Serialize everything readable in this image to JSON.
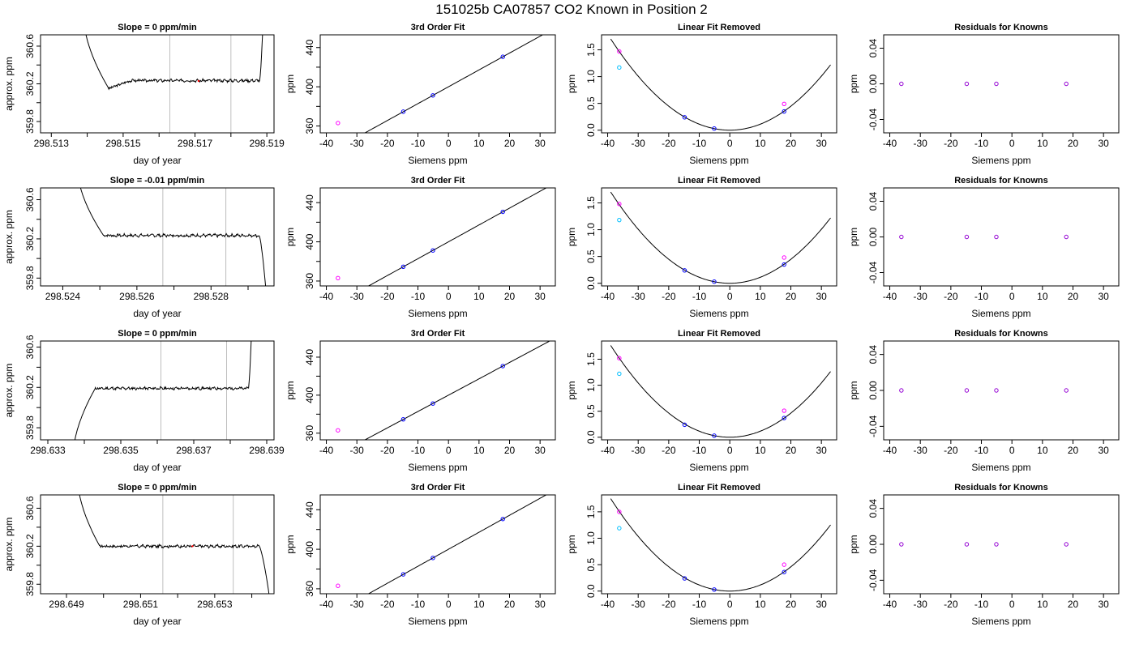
{
  "figure": {
    "title": "151025b     CA07857   CO2 Known in Position  2"
  },
  "colors": {
    "trace": "#000000",
    "vline": "#bebebe",
    "fit_line": "#000000",
    "pt_a": "#0000ff",
    "pt_b": "#ff00ff",
    "pt_c": "#00bfff",
    "pt_d": "#9400d3",
    "pt_red": "#ff0000"
  },
  "chart_data": [
    {
      "type": "line",
      "row": 0,
      "col": 0,
      "title": "Slope =  0  ppm/min",
      "xlabel": "day of year",
      "ylabel": "approx. ppm",
      "xlim": [
        298.5127,
        298.5192
      ],
      "ylim": [
        359.68,
        360.72
      ],
      "xticks": [
        298.513,
        298.514,
        298.515,
        298.516,
        298.517,
        298.518,
        298.519
      ],
      "xtick_labels": [
        "298.513",
        "",
        "298.515",
        "",
        "298.517",
        "",
        "298.519"
      ],
      "yticks": [
        359.8,
        360.0,
        360.2,
        360.4,
        360.6
      ],
      "ytick_labels": [
        "359.8",
        "",
        "360.2",
        "",
        "360.6"
      ],
      "vlines": [
        298.5163,
        298.518
      ],
      "trace": {
        "start": 298.5139,
        "end": 298.5189,
        "edge_lo": 298.5146,
        "edge_hi": 298.5188,
        "left_from": 360.9,
        "right_to": 360.9,
        "level": 360.235,
        "flat_start": 298.5152,
        "dip": 360.15,
        "noise": 0.012,
        "seed": 3
      },
      "markers": [
        {
          "x": 298.5171,
          "y": 360.23
        }
      ]
    },
    {
      "type": "scatter",
      "row": 0,
      "col": 1,
      "title": "3rd Order Fit",
      "xlabel": "Siemens ppm",
      "ylabel": "ppm",
      "xlim": [
        -42,
        35
      ],
      "ylim": [
        353,
        453
      ],
      "xticks": [
        -40,
        -30,
        -20,
        -10,
        0,
        10,
        20,
        30
      ],
      "yticks": [
        360,
        380,
        400,
        420,
        440
      ],
      "ytick_labels": [
        "360",
        "",
        "400",
        "",
        "440"
      ],
      "fit": {
        "a": 400,
        "b": 1.72,
        "c": 0,
        "from": -38.5,
        "to": 33
      },
      "points": [
        {
          "x": -36.2,
          "y": 363.0,
          "c": "pt_b"
        },
        {
          "x": -14.8,
          "y": 374.6,
          "c": "pt_a"
        },
        {
          "x": -5.1,
          "y": 391.2,
          "c": "pt_a"
        },
        {
          "x": 17.8,
          "y": 430.6,
          "c": "pt_a"
        }
      ]
    },
    {
      "type": "scatter",
      "row": 0,
      "col": 2,
      "title": "Linear Fit Removed",
      "xlabel": "Siemens ppm",
      "ylabel": "ppm",
      "xlim": [
        -42,
        35
      ],
      "ylim": [
        -0.05,
        1.78
      ],
      "xticks": [
        -40,
        -30,
        -20,
        -10,
        0,
        10,
        20,
        30
      ],
      "yticks": [
        0.0,
        0.5,
        1.0,
        1.5
      ],
      "ytick_labels": [
        "0.0",
        "0.5",
        "1.0",
        "1.5"
      ],
      "fit": {
        "a": 0,
        "b": 0,
        "c": 0.00112,
        "from": -39,
        "to": 33
      },
      "points": [
        {
          "x": -36.2,
          "y": 1.47,
          "c": "pt_b"
        },
        {
          "x": -36.2,
          "y": 1.17,
          "c": "pt_c"
        },
        {
          "x": -14.8,
          "y": 0.24,
          "c": "pt_a"
        },
        {
          "x": -5.1,
          "y": 0.03,
          "c": "pt_a"
        },
        {
          "x": 17.8,
          "y": 0.35,
          "c": "pt_a"
        },
        {
          "x": 17.8,
          "y": 0.49,
          "c": "pt_b"
        }
      ]
    },
    {
      "type": "scatter",
      "row": 0,
      "col": 3,
      "title": "Residuals for Knowns",
      "xlabel": "Siemens ppm",
      "ylabel": "ppm",
      "xlim": [
        -42,
        35
      ],
      "ylim": [
        -0.055,
        0.055
      ],
      "xticks": [
        -40,
        -30,
        -20,
        -10,
        0,
        10,
        20,
        30
      ],
      "yticks": [
        -0.04,
        0.0,
        0.04
      ],
      "ytick_labels": [
        "-0.04",
        "0.00",
        "0.04"
      ],
      "points": [
        {
          "x": -36.2,
          "y": 0,
          "c": "pt_d"
        },
        {
          "x": -14.8,
          "y": 0,
          "c": "pt_d"
        },
        {
          "x": -5.1,
          "y": 0,
          "c": "pt_d"
        },
        {
          "x": 17.8,
          "y": 0,
          "c": "pt_d"
        }
      ]
    },
    {
      "type": "line",
      "row": 1,
      "col": 0,
      "title": "Slope =  -0.01  ppm/min",
      "xlabel": "day of year",
      "ylabel": "approx. ppm",
      "xlim": [
        298.5234,
        298.5297
      ],
      "ylim": [
        359.72,
        360.72
      ],
      "xticks": [
        298.524,
        298.525,
        298.526,
        298.527,
        298.528,
        298.529
      ],
      "xtick_labels": [
        "298.524",
        "",
        "298.526",
        "",
        "298.528",
        ""
      ],
      "yticks": [
        359.8,
        360.0,
        360.2,
        360.4,
        360.6
      ],
      "ytick_labels": [
        "359.8",
        "",
        "360.2",
        "",
        "360.6"
      ],
      "vlines": [
        298.5267,
        298.5284
      ],
      "trace": {
        "start": 298.5244,
        "end": 298.5295,
        "edge_lo": 298.5251,
        "edge_hi": 298.5293,
        "left_from": 360.9,
        "right_to": 359.6,
        "level": 360.235,
        "flat_start": 298.5254,
        "dip": 360.235,
        "noise": 0.012,
        "seed": 7
      },
      "markers": []
    },
    {
      "type": "scatter",
      "row": 1,
      "col": 1,
      "title": "3rd Order Fit",
      "xlabel": "Siemens ppm",
      "ylabel": "ppm",
      "xlim": [
        -42,
        35
      ],
      "ylim": [
        355,
        455
      ],
      "xticks": [
        -40,
        -30,
        -20,
        -10,
        0,
        10,
        20,
        30
      ],
      "yticks": [
        360,
        380,
        400,
        420,
        440
      ],
      "ytick_labels": [
        "360",
        "",
        "400",
        "",
        "440"
      ],
      "fit": {
        "a": 400,
        "b": 1.72,
        "c": 0,
        "from": -38.5,
        "to": 33
      },
      "points": [
        {
          "x": -36.2,
          "y": 363.0,
          "c": "pt_b"
        },
        {
          "x": -14.8,
          "y": 374.6,
          "c": "pt_a"
        },
        {
          "x": -5.1,
          "y": 391.2,
          "c": "pt_a"
        },
        {
          "x": 17.8,
          "y": 430.6,
          "c": "pt_a"
        }
      ]
    },
    {
      "type": "scatter",
      "row": 1,
      "col": 2,
      "title": "Linear Fit Removed",
      "xlabel": "Siemens ppm",
      "ylabel": "ppm",
      "xlim": [
        -42,
        35
      ],
      "ylim": [
        -0.05,
        1.78
      ],
      "xticks": [
        -40,
        -30,
        -20,
        -10,
        0,
        10,
        20,
        30
      ],
      "yticks": [
        0.0,
        0.5,
        1.0,
        1.5
      ],
      "ytick_labels": [
        "0.0",
        "0.5",
        "1.0",
        "1.5"
      ],
      "fit": {
        "a": 0,
        "b": 0,
        "c": 0.00112,
        "from": -39,
        "to": 33
      },
      "points": [
        {
          "x": -36.2,
          "y": 1.48,
          "c": "pt_b"
        },
        {
          "x": -36.2,
          "y": 1.18,
          "c": "pt_c"
        },
        {
          "x": -14.8,
          "y": 0.24,
          "c": "pt_a"
        },
        {
          "x": -5.1,
          "y": 0.03,
          "c": "pt_a"
        },
        {
          "x": 17.8,
          "y": 0.35,
          "c": "pt_a"
        },
        {
          "x": 17.8,
          "y": 0.48,
          "c": "pt_b"
        }
      ]
    },
    {
      "type": "scatter",
      "row": 1,
      "col": 3,
      "title": "Residuals for Knowns",
      "xlabel": "Siemens ppm",
      "ylabel": "ppm",
      "xlim": [
        -42,
        35
      ],
      "ylim": [
        -0.055,
        0.055
      ],
      "xticks": [
        -40,
        -30,
        -20,
        -10,
        0,
        10,
        20,
        30
      ],
      "yticks": [
        -0.04,
        0.0,
        0.04
      ],
      "ytick_labels": [
        "-0.04",
        "0.00",
        "0.04"
      ],
      "points": [
        {
          "x": -36.2,
          "y": 0,
          "c": "pt_d"
        },
        {
          "x": -14.8,
          "y": 0,
          "c": "pt_d"
        },
        {
          "x": -5.1,
          "y": 0,
          "c": "pt_d"
        },
        {
          "x": 17.8,
          "y": 0,
          "c": "pt_d"
        }
      ]
    },
    {
      "type": "line",
      "row": 2,
      "col": 0,
      "title": "Slope =  0  ppm/min",
      "xlabel": "day of year",
      "ylabel": "approx. ppm",
      "xlim": [
        298.6328,
        298.6392
      ],
      "ylim": [
        359.68,
        360.66
      ],
      "xticks": [
        298.633,
        298.634,
        298.635,
        298.636,
        298.637,
        298.638,
        298.639
      ],
      "xtick_labels": [
        "298.633",
        "",
        "298.635",
        "",
        "298.637",
        "",
        "298.639"
      ],
      "yticks": [
        359.8,
        360.0,
        360.2,
        360.4,
        360.6
      ],
      "ytick_labels": [
        "359.8",
        "",
        "360.2",
        "",
        "360.6"
      ],
      "vlines": [
        298.6361,
        298.6379
      ],
      "trace": {
        "start": 298.6337,
        "end": 298.6386,
        "edge_lo": 298.6343,
        "edge_hi": 298.6385,
        "left_from": 359.55,
        "right_to": 360.9,
        "level": 360.19,
        "flat_start": 298.6345,
        "dip": 360.19,
        "noise": 0.011,
        "seed": 11
      },
      "markers": []
    },
    {
      "type": "scatter",
      "row": 2,
      "col": 1,
      "title": "3rd Order Fit",
      "xlabel": "Siemens ppm",
      "ylabel": "ppm",
      "xlim": [
        -42,
        35
      ],
      "ylim": [
        353,
        457
      ],
      "xticks": [
        -40,
        -30,
        -20,
        -10,
        0,
        10,
        20,
        30
      ],
      "yticks": [
        360,
        380,
        400,
        420,
        440
      ],
      "ytick_labels": [
        "360",
        "",
        "400",
        "",
        "440"
      ],
      "fit": {
        "a": 400,
        "b": 1.72,
        "c": 0,
        "from": -38.5,
        "to": 33
      },
      "points": [
        {
          "x": -36.2,
          "y": 363.0,
          "c": "pt_b"
        },
        {
          "x": -14.8,
          "y": 374.6,
          "c": "pt_a"
        },
        {
          "x": -5.1,
          "y": 391.2,
          "c": "pt_a"
        },
        {
          "x": 17.8,
          "y": 430.6,
          "c": "pt_a"
        }
      ]
    },
    {
      "type": "scatter",
      "row": 2,
      "col": 2,
      "title": "Linear Fit Removed",
      "xlabel": "Siemens ppm",
      "ylabel": "ppm",
      "xlim": [
        -42,
        35
      ],
      "ylim": [
        -0.05,
        1.85
      ],
      "xticks": [
        -40,
        -30,
        -20,
        -10,
        0,
        10,
        20,
        30
      ],
      "yticks": [
        0.0,
        0.5,
        1.0,
        1.5
      ],
      "ytick_labels": [
        "0.0",
        "0.5",
        "1.0",
        "1.5"
      ],
      "fit": {
        "a": 0,
        "b": 0,
        "c": 0.00116,
        "from": -39,
        "to": 33
      },
      "points": [
        {
          "x": -36.2,
          "y": 1.52,
          "c": "pt_b"
        },
        {
          "x": -36.2,
          "y": 1.22,
          "c": "pt_c"
        },
        {
          "x": -14.8,
          "y": 0.24,
          "c": "pt_a"
        },
        {
          "x": -5.1,
          "y": 0.03,
          "c": "pt_a"
        },
        {
          "x": 17.8,
          "y": 0.37,
          "c": "pt_a"
        },
        {
          "x": 17.8,
          "y": 0.51,
          "c": "pt_b"
        }
      ]
    },
    {
      "type": "scatter",
      "row": 2,
      "col": 3,
      "title": "Residuals for Knowns",
      "xlabel": "Siemens ppm",
      "ylabel": "ppm",
      "xlim": [
        -42,
        35
      ],
      "ylim": [
        -0.055,
        0.055
      ],
      "xticks": [
        -40,
        -30,
        -20,
        -10,
        0,
        10,
        20,
        30
      ],
      "yticks": [
        -0.04,
        0.0,
        0.04
      ],
      "ytick_labels": [
        "-0.04",
        "0.00",
        "0.04"
      ],
      "points": [
        {
          "x": -36.2,
          "y": 0,
          "c": "pt_d"
        },
        {
          "x": -14.8,
          "y": 0,
          "c": "pt_d"
        },
        {
          "x": -5.1,
          "y": 0,
          "c": "pt_d"
        },
        {
          "x": 17.8,
          "y": 0,
          "c": "pt_d"
        }
      ]
    },
    {
      "type": "line",
      "row": 3,
      "col": 0,
      "title": "Slope =  0  ppm/min",
      "xlabel": "day of year",
      "ylabel": "approx. ppm",
      "xlim": [
        298.6483,
        298.6546
      ],
      "ylim": [
        359.7,
        360.74
      ],
      "xticks": [
        298.649,
        298.65,
        298.651,
        298.652,
        298.653,
        298.654
      ],
      "xtick_labels": [
        "298.649",
        "",
        "298.651",
        "",
        "298.653",
        ""
      ],
      "yticks": [
        359.8,
        360.0,
        360.2,
        360.4,
        360.6
      ],
      "ytick_labels": [
        "359.8",
        "",
        "360.2",
        "",
        "360.6"
      ],
      "vlines": [
        298.6516,
        298.6535
      ],
      "trace": {
        "start": 298.6493,
        "end": 298.6545,
        "edge_lo": 298.6499,
        "edge_hi": 298.6542,
        "left_from": 360.9,
        "right_to": 359.6,
        "level": 360.2,
        "flat_start": 298.6503,
        "dip": 360.2,
        "noise": 0.012,
        "seed": 17
      },
      "markers": [
        {
          "x": 298.6524,
          "y": 360.2
        }
      ]
    },
    {
      "type": "scatter",
      "row": 3,
      "col": 1,
      "title": "3rd Order Fit",
      "xlabel": "Siemens ppm",
      "ylabel": "ppm",
      "xlim": [
        -42,
        35
      ],
      "ylim": [
        355,
        455
      ],
      "xticks": [
        -40,
        -30,
        -20,
        -10,
        0,
        10,
        20,
        30
      ],
      "yticks": [
        360,
        380,
        400,
        420,
        440
      ],
      "ytick_labels": [
        "360",
        "",
        "400",
        "",
        "440"
      ],
      "fit": {
        "a": 400,
        "b": 1.72,
        "c": 0,
        "from": -38.5,
        "to": 33
      },
      "points": [
        {
          "x": -36.2,
          "y": 363.0,
          "c": "pt_b"
        },
        {
          "x": -14.8,
          "y": 374.6,
          "c": "pt_a"
        },
        {
          "x": -5.1,
          "y": 391.2,
          "c": "pt_a"
        },
        {
          "x": 17.8,
          "y": 430.6,
          "c": "pt_a"
        }
      ]
    },
    {
      "type": "scatter",
      "row": 3,
      "col": 2,
      "title": "Linear Fit Removed",
      "xlabel": "Siemens ppm",
      "ylabel": "ppm",
      "xlim": [
        -42,
        35
      ],
      "ylim": [
        -0.05,
        1.82
      ],
      "xticks": [
        -40,
        -30,
        -20,
        -10,
        0,
        10,
        20,
        30
      ],
      "yticks": [
        0.0,
        0.5,
        1.0,
        1.5
      ],
      "ytick_labels": [
        "0.0",
        "0.5",
        "1.0",
        "1.5"
      ],
      "fit": {
        "a": 0,
        "b": 0,
        "c": 0.00115,
        "from": -39,
        "to": 33
      },
      "points": [
        {
          "x": -36.2,
          "y": 1.5,
          "c": "pt_b"
        },
        {
          "x": -36.2,
          "y": 1.19,
          "c": "pt_c"
        },
        {
          "x": -14.8,
          "y": 0.24,
          "c": "pt_a"
        },
        {
          "x": -5.1,
          "y": 0.03,
          "c": "pt_a"
        },
        {
          "x": 17.8,
          "y": 0.36,
          "c": "pt_a"
        },
        {
          "x": 17.8,
          "y": 0.5,
          "c": "pt_b"
        }
      ]
    },
    {
      "type": "scatter",
      "row": 3,
      "col": 3,
      "title": "Residuals for Knowns",
      "xlabel": "Siemens ppm",
      "ylabel": "ppm",
      "xlim": [
        -42,
        35
      ],
      "ylim": [
        -0.055,
        0.055
      ],
      "xticks": [
        -40,
        -30,
        -20,
        -10,
        0,
        10,
        20,
        30
      ],
      "yticks": [
        -0.04,
        0.0,
        0.04
      ],
      "ytick_labels": [
        "-0.04",
        "0.00",
        "0.04"
      ],
      "points": [
        {
          "x": -36.2,
          "y": 0,
          "c": "pt_d"
        },
        {
          "x": -14.8,
          "y": 0,
          "c": "pt_d"
        },
        {
          "x": -5.1,
          "y": 0,
          "c": "pt_d"
        },
        {
          "x": 17.8,
          "y": 0,
          "c": "pt_d"
        }
      ]
    }
  ]
}
